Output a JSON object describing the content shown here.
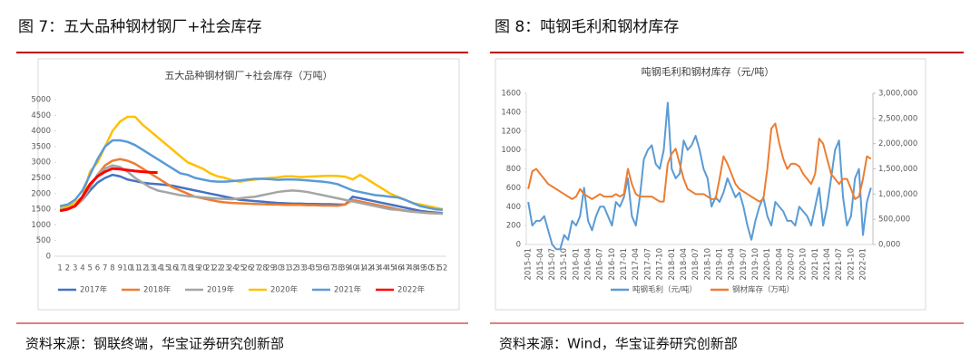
{
  "figures": [
    {
      "caption": "图 7：五大品种钢材钢厂+社会库存",
      "source": "资料来源：钢联终端，华宝证券研究创新部"
    },
    {
      "caption": "图 8：吨钢毛利和钢材库存",
      "source": "资料来源：Wind，华宝证券研究创新部"
    }
  ],
  "chart_data": [
    {
      "type": "line",
      "title": "五大品种钢材钢厂+社会库存（万吨）",
      "categories": [
        "1",
        "2",
        "3",
        "4",
        "5",
        "6",
        "7",
        "8",
        "9",
        "10",
        "11",
        "12",
        "13",
        "14",
        "15",
        "16",
        "17",
        "18",
        "19",
        "20",
        "21",
        "22",
        "23",
        "24",
        "25",
        "26",
        "27",
        "28",
        "29",
        "30",
        "31",
        "32",
        "33",
        "34",
        "35",
        "36",
        "37",
        "38",
        "39",
        "40",
        "41",
        "42",
        "43",
        "44",
        "45",
        "46",
        "47",
        "48",
        "49",
        "50",
        "51",
        "52"
      ],
      "ylim": [
        0,
        5000
      ],
      "yticks": [
        0,
        500,
        1000,
        1500,
        2000,
        2500,
        3000,
        3500,
        4000,
        4500,
        5000
      ],
      "grid": false,
      "legend": "bottom",
      "series": [
        {
          "name": "2017年",
          "color": "#4472c4",
          "values": [
            1500,
            1550,
            1650,
            1800,
            2100,
            2350,
            2500,
            2600,
            2550,
            2450,
            2400,
            2350,
            2320,
            2300,
            2280,
            2250,
            2200,
            2150,
            2100,
            2050,
            2000,
            1950,
            1900,
            1850,
            1800,
            1780,
            1760,
            1740,
            1720,
            1700,
            1690,
            1680,
            1680,
            1670,
            1670,
            1660,
            1660,
            1650,
            1650,
            1900,
            1850,
            1800,
            1750,
            1700,
            1650,
            1600,
            1550,
            1500,
            1450,
            1420,
            1400,
            1380
          ]
        },
        {
          "name": "2018年",
          "color": "#ed7d31",
          "values": [
            1450,
            1500,
            1600,
            1800,
            2200,
            2600,
            2900,
            3050,
            3100,
            3050,
            2950,
            2800,
            2650,
            2500,
            2350,
            2200,
            2100,
            2000,
            1900,
            1850,
            1800,
            1750,
            1720,
            1700,
            1690,
            1680,
            1670,
            1660,
            1650,
            1650,
            1640,
            1640,
            1640,
            1630,
            1630,
            1620,
            1620,
            1610,
            1650,
            1800,
            1750,
            1700,
            1650,
            1600,
            1550,
            1500,
            1460,
            1430,
            1400,
            1380,
            1370,
            1360
          ]
        },
        {
          "name": "2019年",
          "color": "#a5a5a5",
          "values": [
            1500,
            1550,
            1650,
            1800,
            2200,
            2600,
            2800,
            2900,
            2850,
            2700,
            2500,
            2350,
            2200,
            2100,
            2050,
            2000,
            1950,
            1920,
            1900,
            1880,
            1860,
            1840,
            1830,
            1820,
            1850,
            1880,
            1900,
            1950,
            2000,
            2050,
            2080,
            2100,
            2080,
            2050,
            2000,
            1950,
            1900,
            1850,
            1800,
            1750,
            1700,
            1650,
            1600,
            1550,
            1500,
            1480,
            1450,
            1420,
            1400,
            1380,
            1370,
            1360
          ]
        },
        {
          "name": "2020年",
          "color": "#ffc000",
          "values": [
            1550,
            1600,
            1700,
            1900,
            2700,
            3000,
            3500,
            4000,
            4300,
            4450,
            4450,
            4200,
            4000,
            3800,
            3600,
            3400,
            3200,
            3000,
            2900,
            2800,
            2650,
            2550,
            2500,
            2420,
            2380,
            2420,
            2450,
            2480,
            2500,
            2520,
            2550,
            2550,
            2530,
            2540,
            2550,
            2560,
            2570,
            2560,
            2540,
            2450,
            2600,
            2450,
            2300,
            2150,
            2000,
            1900,
            1800,
            1700,
            1650,
            1600,
            1550,
            1500
          ]
        },
        {
          "name": "2021年",
          "color": "#5b9bd5",
          "values": [
            1600,
            1650,
            1800,
            2100,
            2600,
            3100,
            3500,
            3700,
            3700,
            3650,
            3550,
            3400,
            3250,
            3100,
            2950,
            2800,
            2650,
            2600,
            2500,
            2450,
            2400,
            2380,
            2380,
            2400,
            2420,
            2450,
            2470,
            2470,
            2460,
            2440,
            2450,
            2450,
            2440,
            2420,
            2400,
            2380,
            2350,
            2300,
            2200,
            2100,
            2050,
            2000,
            1950,
            1930,
            1900,
            1880,
            1800,
            1700,
            1600,
            1550,
            1500,
            1480
          ]
        },
        {
          "name": "2022年",
          "color": "#ff0000",
          "values": [
            1450,
            1500,
            1600,
            1900,
            2300,
            2550,
            2700,
            2800,
            2780,
            2750,
            2720,
            2700,
            2680,
            2670,
            null,
            null,
            null,
            null,
            null,
            null,
            null,
            null,
            null,
            null,
            null,
            null,
            null,
            null,
            null,
            null,
            null,
            null,
            null,
            null,
            null,
            null,
            null,
            null,
            null,
            null,
            null,
            null,
            null,
            null,
            null,
            null,
            null,
            null,
            null,
            null,
            null,
            null
          ]
        }
      ]
    },
    {
      "type": "line",
      "title": "吨钢毛利和钢材库存（元/吨）",
      "categories": [
        "2015-01",
        null,
        null,
        "2015-04",
        null,
        null,
        "2015-07",
        null,
        null,
        "2015-10",
        null,
        null,
        "2016-01",
        null,
        null,
        "2016-04",
        null,
        null,
        "2016-07",
        null,
        null,
        "2016-10",
        null,
        null,
        "2017-01",
        null,
        null,
        "2017-04",
        null,
        null,
        "2017-07",
        null,
        null,
        "2017-10",
        null,
        null,
        "2018-01",
        null,
        null,
        "2018-04",
        null,
        null,
        "2018-07",
        null,
        null,
        "2018-10",
        null,
        null,
        "2019-01",
        null,
        null,
        "2019-04",
        null,
        null,
        "2019-07",
        null,
        null,
        "2019-10",
        null,
        null,
        "2020-01",
        null,
        null,
        "2020-04",
        null,
        null,
        "2020-07",
        null,
        null,
        "2020-10",
        null,
        null,
        "2021-01",
        null,
        null,
        "2021-04",
        null,
        null,
        "2021-07",
        null,
        null,
        "2021-10",
        null,
        null,
        "2022-01",
        null,
        null
      ],
      "ylim": [
        0,
        1600
      ],
      "yticks": [
        0,
        200,
        400,
        600,
        800,
        1000,
        1200,
        1400,
        1600
      ],
      "y2lim": [
        0,
        3000000
      ],
      "y2ticks": [
        {
          "value": 0,
          "label": "0,000"
        },
        {
          "value": 500000,
          "label": "500,000"
        },
        {
          "value": 1000000,
          "label": "1,000,000"
        },
        {
          "value": 1500000,
          "label": "1,500,000"
        },
        {
          "value": 2000000,
          "label": "2,000,000"
        },
        {
          "value": 2500000,
          "label": "2,500,000"
        },
        {
          "value": 3000000,
          "label": "3,000,000"
        }
      ],
      "grid": false,
      "legend": "bottom",
      "series": [
        {
          "name": "吨钢毛利（元/吨）",
          "color": "#5b9bd5",
          "values": [
            450,
            200,
            250,
            250,
            300,
            150,
            0,
            -50,
            -50,
            100,
            50,
            250,
            200,
            300,
            600,
            250,
            150,
            300,
            400,
            400,
            300,
            200,
            450,
            400,
            500,
            700,
            300,
            200,
            500,
            900,
            1000,
            1050,
            850,
            800,
            1000,
            1500,
            800,
            700,
            750,
            1100,
            1000,
            1050,
            1150,
            1000,
            800,
            700,
            400,
            500,
            450,
            550,
            700,
            600,
            500,
            550,
            400,
            200,
            50,
            250,
            400,
            500,
            300,
            200,
            450,
            400,
            350,
            250,
            250,
            200,
            400,
            350,
            300,
            200,
            400,
            600,
            200,
            400,
            700,
            1000,
            1100,
            500,
            200,
            300,
            700,
            800,
            100,
            450,
            600
          ]
        },
        {
          "name": "钢材库存（万吨）",
          "color": "#ed7d31",
          "axis": "y2",
          "values": [
            1100000,
            1450000,
            1500000,
            1400000,
            1300000,
            1200000,
            1150000,
            1100000,
            1050000,
            1000000,
            950000,
            900000,
            950000,
            1100000,
            1000000,
            950000,
            900000,
            950000,
            1000000,
            950000,
            950000,
            950000,
            1000000,
            950000,
            1000000,
            1500000,
            1200000,
            1000000,
            950000,
            950000,
            950000,
            950000,
            900000,
            850000,
            850000,
            1600000,
            1800000,
            1900000,
            1600000,
            1300000,
            1100000,
            1050000,
            1000000,
            1000000,
            1000000,
            950000,
            900000,
            900000,
            1300000,
            1750000,
            1600000,
            1400000,
            1200000,
            1100000,
            1050000,
            1000000,
            950000,
            900000,
            850000,
            900000,
            1500000,
            2300000,
            2400000,
            2000000,
            1700000,
            1500000,
            1600000,
            1600000,
            1550000,
            1400000,
            1300000,
            1200000,
            1400000,
            2100000,
            2000000,
            1700000,
            1400000,
            1300000,
            1200000,
            1300000,
            1300000,
            1100000,
            900000,
            950000,
            1300000,
            1750000,
            1700000
          ]
        }
      ]
    }
  ]
}
